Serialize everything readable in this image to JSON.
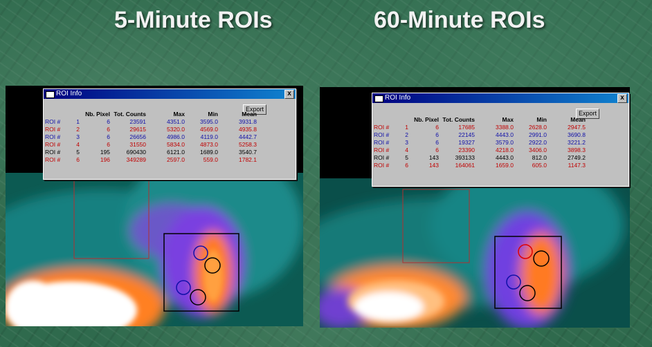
{
  "titles": {
    "left": "5-Minute ROIs",
    "right": "60-Minute ROIs"
  },
  "left_window": {
    "title": "ROI Info",
    "close": "x",
    "export_label": "Export",
    "columns": [
      "",
      "",
      "Nb. Pixel",
      "Tot. Counts",
      "Max",
      "Min",
      "Mean"
    ],
    "rows": [
      {
        "name": "ROI #",
        "id": "1",
        "pixels": "6",
        "total": "23591",
        "max": "4351.0",
        "min": "3595.0",
        "mean": "3931.8",
        "color": "blue"
      },
      {
        "name": "ROI #",
        "id": "2",
        "pixels": "6",
        "total": "29615",
        "max": "5320.0",
        "min": "4569.0",
        "mean": "4935.8",
        "color": "red"
      },
      {
        "name": "ROI #",
        "id": "3",
        "pixels": "6",
        "total": "26656",
        "max": "4986.0",
        "min": "4119.0",
        "mean": "4442.7",
        "color": "blue"
      },
      {
        "name": "ROI #",
        "id": "4",
        "pixels": "6",
        "total": "31550",
        "max": "5834.0",
        "min": "4873.0",
        "mean": "5258.3",
        "color": "red"
      },
      {
        "name": "ROI #",
        "id": "5",
        "pixels": "195",
        "total": "690430",
        "max": "6121.0",
        "min": "1689.0",
        "mean": "3540.7",
        "color": "black"
      },
      {
        "name": "ROI #",
        "id": "6",
        "pixels": "196",
        "total": "349289",
        "max": "2597.0",
        "min": "559.0",
        "mean": "1782.1",
        "color": "red"
      }
    ]
  },
  "right_window": {
    "title": "ROI Info",
    "close": "x",
    "export_label": "Export",
    "columns": [
      "",
      "",
      "Nb. Pixel",
      "Tot. Counts",
      "Max",
      "Min",
      "Mean"
    ],
    "rows": [
      {
        "name": "ROI #",
        "id": "1",
        "pixels": "6",
        "total": "17685",
        "max": "3388.0",
        "min": "2628.0",
        "mean": "2947.5",
        "color": "red"
      },
      {
        "name": "ROI #",
        "id": "2",
        "pixels": "6",
        "total": "22145",
        "max": "4443.0",
        "min": "2991.0",
        "mean": "3690.8",
        "color": "blue"
      },
      {
        "name": "ROI #",
        "id": "3",
        "pixels": "6",
        "total": "19327",
        "max": "3579.0",
        "min": "2922.0",
        "mean": "3221.2",
        "color": "blue"
      },
      {
        "name": "ROI #",
        "id": "4",
        "pixels": "6",
        "total": "23390",
        "max": "4218.0",
        "min": "3406.0",
        "mean": "3898.3",
        "color": "red"
      },
      {
        "name": "ROI #",
        "id": "5",
        "pixels": "143",
        "total": "393133",
        "max": "4443.0",
        "min": "812.0",
        "mean": "2749.2",
        "color": "black"
      },
      {
        "name": "ROI #",
        "id": "6",
        "pixels": "143",
        "total": "164061",
        "max": "1659.0",
        "min": "605.0",
        "mean": "1147.3",
        "color": "red"
      }
    ]
  },
  "colors": {
    "roi_blue": "#1010a8",
    "roi_red": "#c00000",
    "window_gray": "#c0c0c0",
    "titlebar": "#000080",
    "background": "#2f6a4d"
  }
}
